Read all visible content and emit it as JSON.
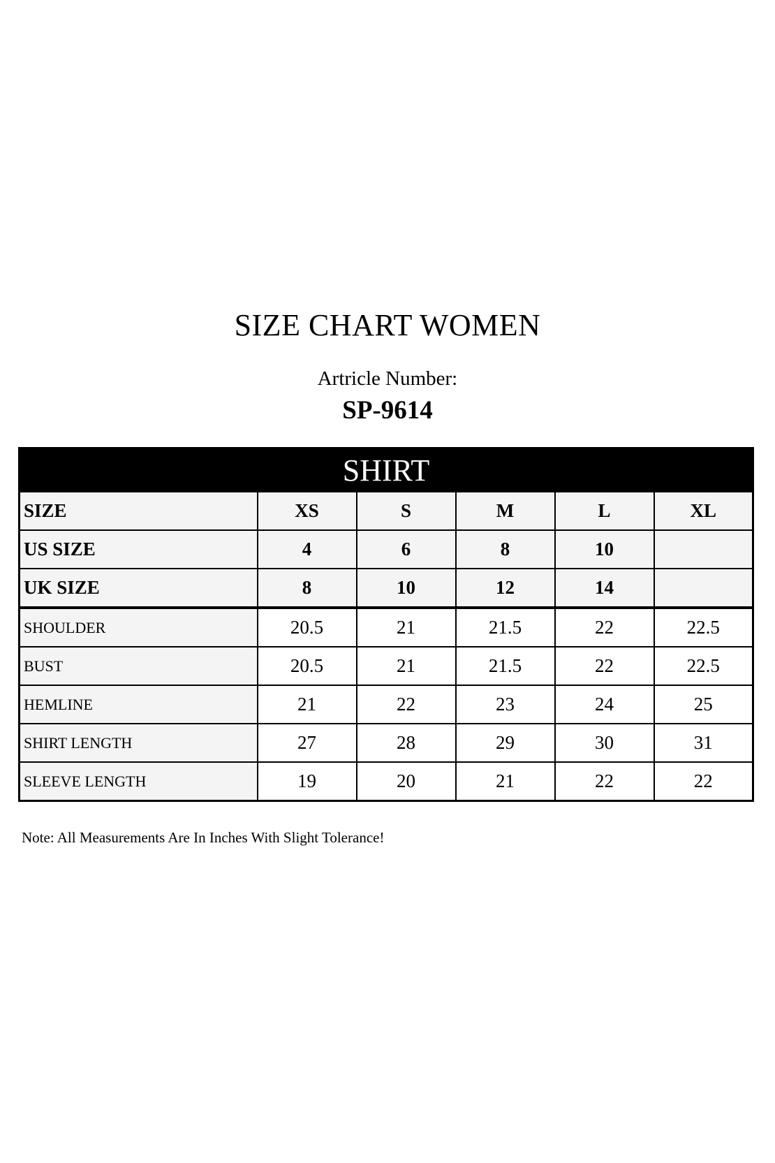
{
  "title": "SIZE CHART WOMEN",
  "article_label": "Artricle Number:",
  "article_number": "SP-9614",
  "table": {
    "section": "SHIRT",
    "header_rows": [
      {
        "label": "SIZE",
        "values": [
          "XS",
          "S",
          "M",
          "L",
          "XL"
        ]
      },
      {
        "label": "US SIZE",
        "values": [
          "4",
          "6",
          "8",
          "10",
          ""
        ]
      },
      {
        "label": "UK SIZE",
        "values": [
          "8",
          "10",
          "12",
          "14",
          ""
        ]
      }
    ],
    "rows": [
      {
        "label": "SHOULDER",
        "values": [
          "20.5",
          "21",
          "21.5",
          "22",
          "22.5"
        ]
      },
      {
        "label": "BUST",
        "values": [
          "20.5",
          "21",
          "21.5",
          "22",
          "22.5"
        ]
      },
      {
        "label": "HEMLINE",
        "values": [
          "21",
          "22",
          "23",
          "24",
          "25"
        ]
      },
      {
        "label": "SHIRT LENGTH",
        "values": [
          "27",
          "28",
          "29",
          "30",
          "31"
        ]
      },
      {
        "label": "SLEEVE LENGTH",
        "values": [
          "19",
          "20",
          "21",
          "22",
          "22"
        ]
      }
    ]
  },
  "note": "Note: All Measurements Are In Inches With Slight Tolerance!"
}
